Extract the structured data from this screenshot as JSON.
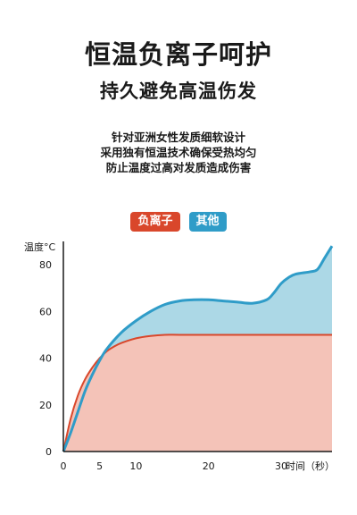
{
  "header": {
    "title": "恒温负离子呵护",
    "subtitle": "持久避免高温伤发"
  },
  "description": {
    "lines": [
      "针对亚洲女性发质细软设计",
      "采用独有恒温技术确保受热均匀",
      "防止温度过高对发质造成伤害"
    ]
  },
  "legend": {
    "items": [
      {
        "label": "负离子",
        "color": "#d9472b"
      },
      {
        "label": "其他",
        "color": "#2f9cc8"
      }
    ]
  },
  "chart_data": {
    "type": "area",
    "ylabel": "温度°C",
    "xlabel": "时间（秒）",
    "xlim": [
      0,
      37
    ],
    "ylim": [
      0,
      90
    ],
    "x_ticks": [
      0,
      5,
      10,
      20,
      30
    ],
    "y_ticks": [
      0,
      20,
      40,
      60,
      80
    ],
    "grid": false,
    "legend_position": "top-center",
    "series": [
      {
        "name": "负离子",
        "color": "#d9472b",
        "fill": "#f4c3b8",
        "x": [
          0,
          1,
          2,
          3,
          4,
          5,
          6,
          7,
          8,
          10,
          12,
          14,
          16,
          20,
          25,
          30,
          35,
          37
        ],
        "y": [
          0,
          14,
          24,
          31,
          36,
          40,
          43,
          45,
          46.5,
          48.5,
          49.5,
          50,
          50,
          50,
          50,
          50,
          50,
          50
        ]
      },
      {
        "name": "其他",
        "color": "#2f9cc8",
        "fill": "#acd8e6",
        "x": [
          0,
          1,
          2,
          3,
          4,
          5,
          6,
          8,
          10,
          12,
          14,
          16,
          18,
          20,
          22,
          24,
          26,
          28,
          29,
          30,
          31,
          32,
          34,
          35,
          36,
          37
        ],
        "y": [
          0,
          8,
          17,
          26,
          33,
          39,
          44,
          51,
          56,
          60,
          63,
          64.5,
          65,
          65,
          64.5,
          64,
          63.5,
          65,
          68,
          72,
          74.5,
          76,
          77,
          78,
          83,
          88
        ]
      }
    ]
  }
}
